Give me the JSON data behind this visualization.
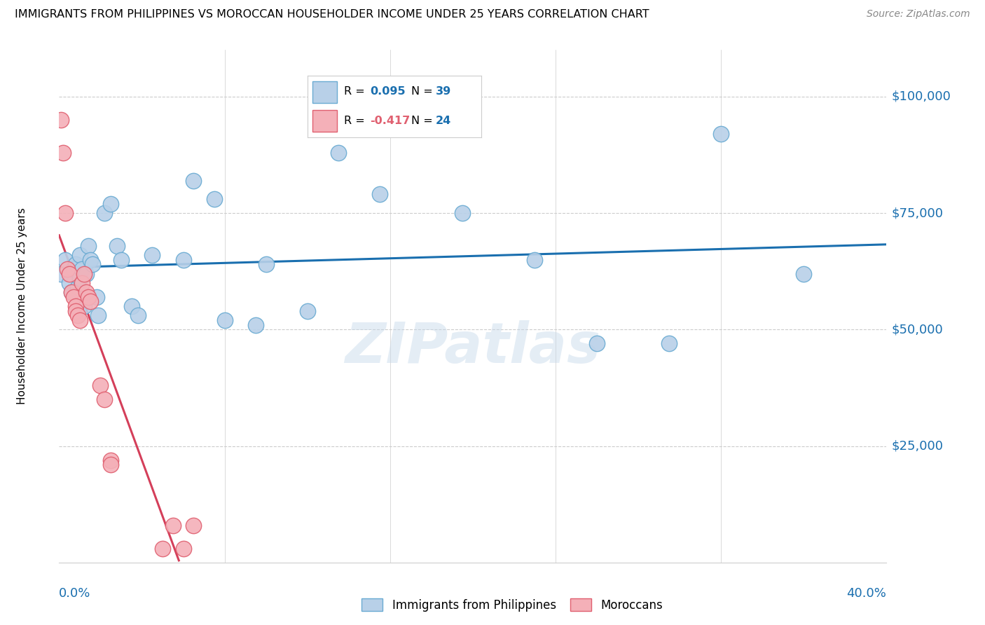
{
  "title": "IMMIGRANTS FROM PHILIPPINES VS MOROCCAN HOUSEHOLDER INCOME UNDER 25 YEARS CORRELATION CHART",
  "source": "Source: ZipAtlas.com",
  "ylabel": "Householder Income Under 25 years",
  "y_tick_values": [
    25000,
    50000,
    75000,
    100000
  ],
  "xlim": [
    0.0,
    0.4
  ],
  "ylim": [
    0,
    110000
  ],
  "legend1_R": "0.095",
  "legend1_N": "39",
  "legend2_R": "-0.417",
  "legend2_N": "24",
  "philippines_color": "#b8d0e8",
  "philippines_edge": "#6aabd2",
  "moroccan_color": "#f4b0b8",
  "moroccan_edge": "#e06070",
  "philippines_x": [
    0.001,
    0.003,
    0.005,
    0.006,
    0.007,
    0.008,
    0.009,
    0.01,
    0.01,
    0.011,
    0.012,
    0.013,
    0.014,
    0.015,
    0.016,
    0.018,
    0.019,
    0.022,
    0.025,
    0.028,
    0.03,
    0.035,
    0.038,
    0.045,
    0.06,
    0.065,
    0.075,
    0.08,
    0.095,
    0.1,
    0.12,
    0.135,
    0.155,
    0.195,
    0.23,
    0.26,
    0.295,
    0.32,
    0.36
  ],
  "philippines_y": [
    62000,
    65000,
    60000,
    58000,
    63000,
    64000,
    59000,
    66000,
    61000,
    63000,
    55000,
    62000,
    68000,
    65000,
    64000,
    57000,
    53000,
    75000,
    77000,
    68000,
    65000,
    55000,
    53000,
    66000,
    65000,
    82000,
    78000,
    52000,
    51000,
    64000,
    54000,
    88000,
    79000,
    75000,
    65000,
    47000,
    47000,
    92000,
    62000
  ],
  "moroccan_x": [
    0.001,
    0.002,
    0.003,
    0.004,
    0.005,
    0.006,
    0.007,
    0.008,
    0.008,
    0.009,
    0.01,
    0.011,
    0.012,
    0.013,
    0.014,
    0.015,
    0.02,
    0.022,
    0.025,
    0.025,
    0.05,
    0.055,
    0.06,
    0.065
  ],
  "moroccan_y": [
    95000,
    88000,
    75000,
    63000,
    62000,
    58000,
    57000,
    55000,
    54000,
    53000,
    52000,
    60000,
    62000,
    58000,
    57000,
    56000,
    38000,
    35000,
    22000,
    21000,
    3000,
    8000,
    3000,
    8000
  ],
  "watermark": "ZIPatlas",
  "line_blue_color": "#1a6faf",
  "line_pink_color": "#d43f5a"
}
